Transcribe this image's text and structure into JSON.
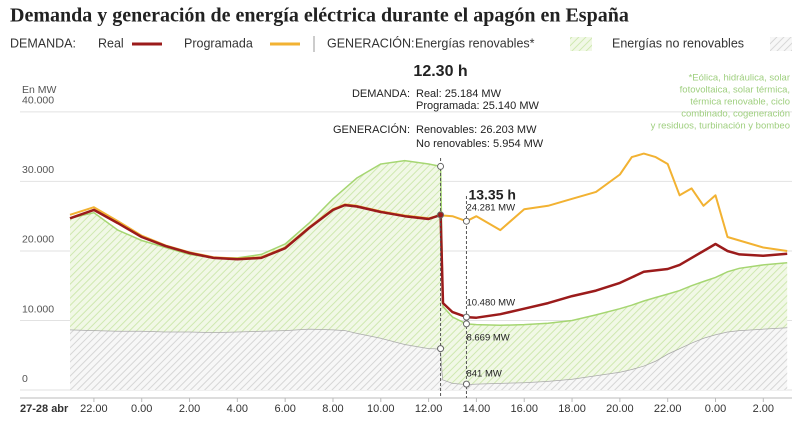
{
  "chart_data": {
    "type": "line",
    "title": "Demanda y generación de energía eléctrica durante el apagón en España",
    "legend_groups": [
      "DEMANDA:",
      "GENERACIÓN:"
    ],
    "y_label": "En MW",
    "x_start_label": "27-28 abr",
    "note": [
      "*Eólica, hidráulica, solar",
      "fotovoltaica, solar térmica,",
      "térmica renovable, ciclo",
      "combinado, cogeneración",
      "y residuos, turbinación y bombeo"
    ],
    "x": [
      21,
      22,
      23,
      24,
      25,
      26,
      27,
      28,
      29,
      30,
      31,
      32,
      32.5,
      33,
      34,
      35,
      36,
      36.5,
      36.6,
      37,
      37.583,
      38,
      39,
      40,
      41,
      42,
      43,
      44,
      44.5,
      45,
      45.5,
      46,
      46.5,
      47,
      47.5,
      48,
      48.5,
      49,
      50,
      51
    ],
    "xlim": [
      21,
      51.2
    ],
    "xticks": [
      {
        "value": 22,
        "label": "22.00"
      },
      {
        "value": 24,
        "label": "0.00"
      },
      {
        "value": 26,
        "label": "2.00"
      },
      {
        "value": 28,
        "label": "4.00"
      },
      {
        "value": 30,
        "label": "6.00"
      },
      {
        "value": 32,
        "label": "8.00"
      },
      {
        "value": 34,
        "label": "10.00"
      },
      {
        "value": 36,
        "label": "12.00"
      },
      {
        "value": 38,
        "label": "14.00"
      },
      {
        "value": 40,
        "label": "16.00"
      },
      {
        "value": 42,
        "label": "18.00"
      },
      {
        "value": 44,
        "label": "20.00"
      },
      {
        "value": 46,
        "label": "22.00"
      },
      {
        "value": 48,
        "label": "0.00"
      },
      {
        "value": 50,
        "label": "2.00"
      }
    ],
    "ylim": [
      0,
      42000
    ],
    "yticks": [
      0,
      {
        "value": 10000,
        "label": "10.000"
      },
      {
        "value": 20000,
        "label": "20.000"
      },
      {
        "value": 30000,
        "label": "30.000"
      },
      {
        "value": 40000,
        "label": "40.000"
      }
    ],
    "grid": true,
    "series": [
      {
        "name": "Real",
        "color": "#9b1b1b",
        "kind": "line",
        "values": [
          24700,
          25900,
          24000,
          22000,
          20700,
          19700,
          19000,
          18800,
          19000,
          20400,
          23300,
          25900,
          26600,
          26400,
          25600,
          25000,
          24600,
          25184,
          12500,
          11200,
          10480,
          10400,
          10900,
          11700,
          12500,
          13500,
          14300,
          15400,
          16200,
          17000,
          17200,
          17400,
          18000,
          19000,
          20000,
          21000,
          20000,
          19500,
          19300,
          19600
        ],
        "value_labels": [
          null,
          null,
          null,
          null,
          null,
          null,
          null,
          null,
          null,
          null,
          null,
          null,
          null,
          null,
          null,
          null,
          null,
          null,
          null,
          null,
          "10.480 MW",
          null,
          null,
          null,
          null,
          null,
          null,
          null,
          null,
          null,
          null,
          null,
          null,
          null,
          null,
          null,
          null,
          null,
          null,
          null
        ]
      },
      {
        "name": "Programada",
        "color": "#f2b232",
        "kind": "line",
        "values": [
          25200,
          26300,
          24300,
          22200,
          20800,
          19800,
          19100,
          18900,
          19100,
          20500,
          23400,
          26000,
          26700,
          26500,
          25700,
          25100,
          24700,
          25140,
          25100,
          25000,
          24281,
          25000,
          23000,
          26000,
          26500,
          27500,
          28500,
          31000,
          33500,
          34000,
          33500,
          32500,
          28000,
          29000,
          26500,
          28000,
          22000,
          21500,
          20500,
          20000
        ],
        "value_labels": [
          null,
          null,
          null,
          null,
          null,
          null,
          null,
          null,
          null,
          null,
          null,
          null,
          null,
          null,
          null,
          null,
          null,
          null,
          null,
          null,
          "24.281 MW",
          null,
          null,
          null,
          null,
          null,
          null,
          null,
          null,
          null,
          null,
          null,
          null,
          null,
          null,
          null,
          null,
          null,
          null,
          null
        ]
      },
      {
        "name": "Energías renovables*",
        "color": "#a6d672",
        "kind": "area",
        "stack_on": 3,
        "values": [
          16000,
          16900,
          14500,
          13000,
          12100,
          11100,
          10700,
          10600,
          11000,
          12400,
          15200,
          18800,
          20400,
          22300,
          25000,
          26400,
          26500,
          26203,
          10500,
          9500,
          8669,
          8500,
          8300,
          8300,
          8300,
          8400,
          8700,
          9100,
          9200,
          9300,
          9100,
          8600,
          8300,
          8200,
          8100,
          8200,
          8600,
          8900,
          9200,
          9300
        ],
        "value_labels": [
          null,
          null,
          null,
          null,
          null,
          null,
          null,
          null,
          null,
          null,
          null,
          null,
          null,
          null,
          null,
          null,
          null,
          null,
          null,
          null,
          "8.669 MW",
          null,
          null,
          null,
          null,
          null,
          null,
          null,
          null,
          null,
          null,
          null,
          null,
          null,
          null,
          null,
          null,
          null,
          null,
          null
        ]
      },
      {
        "name": "Energías no renovables",
        "color": "#a9a9a9",
        "kind": "area",
        "values": [
          8700,
          8600,
          8500,
          8500,
          8400,
          8400,
          8300,
          8400,
          8500,
          8600,
          8800,
          8700,
          8600,
          8200,
          7500,
          6600,
          6000,
          5954,
          1500,
          1000,
          841,
          900,
          1000,
          1100,
          1300,
          1600,
          2100,
          2600,
          3000,
          3500,
          4200,
          5200,
          6000,
          6800,
          7500,
          8000,
          8400,
          8600,
          8800,
          9000
        ],
        "value_labels": [
          null,
          null,
          null,
          null,
          null,
          null,
          null,
          null,
          null,
          null,
          null,
          null,
          null,
          null,
          null,
          null,
          null,
          null,
          null,
          null,
          "841 MW",
          null,
          null,
          null,
          null,
          null,
          null,
          null,
          null,
          null,
          null,
          null,
          null,
          null,
          null,
          null,
          null,
          null,
          null,
          null
        ]
      }
    ],
    "highlights": [
      {
        "x": 36.5,
        "label": "12.30 h",
        "lines": [
          [
            "DEMANDA:",
            "Real: 25.184 MW"
          ],
          [
            null,
            "Programada: 25.140 MW"
          ],
          [
            "GENERACIÓN:",
            "Renovables: 26.203 MW"
          ],
          [
            null,
            "No renovables: 5.954 MW"
          ]
        ]
      },
      {
        "x": 37.583,
        "label": "13.35 h"
      }
    ]
  }
}
